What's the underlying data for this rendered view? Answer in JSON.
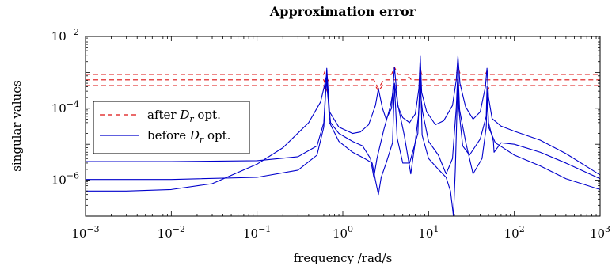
{
  "chart_data": {
    "type": "line",
    "title": "Approximation error",
    "xlabel": "frequency /rad/s",
    "ylabel": "singular values",
    "xscale": "log",
    "yscale": "log",
    "xlim": [
      0.001,
      1000
    ],
    "ylim": [
      1e-07,
      0.01
    ],
    "x_ticks": [
      {
        "value": 0.001,
        "base": "10",
        "exp": "−3"
      },
      {
        "value": 0.01,
        "base": "10",
        "exp": "−2"
      },
      {
        "value": 0.1,
        "base": "10",
        "exp": "−1"
      },
      {
        "value": 1,
        "base": "10",
        "exp": "0"
      },
      {
        "value": 10,
        "base": "10",
        "exp": "1"
      },
      {
        "value": 100,
        "base": "10",
        "exp": "2"
      },
      {
        "value": 1000,
        "base": "10",
        "exp": "3"
      }
    ],
    "y_ticks": [
      {
        "value": 1e-06,
        "base": "10",
        "exp": "−6"
      },
      {
        "value": 0.0001,
        "base": "10",
        "exp": "−4"
      },
      {
        "value": 0.01,
        "base": "10",
        "exp": "−2"
      }
    ],
    "grid": false,
    "legend_position": "center-left",
    "legend": [
      {
        "prefix": "after ",
        "symbol": "D",
        "subscript": "r",
        "suffix": " opt.",
        "color": "#dd1111",
        "dash": "dashed"
      },
      {
        "prefix": "before ",
        "symbol": "D",
        "subscript": "r",
        "suffix": " opt.",
        "color": "#0000cc",
        "dash": "solid"
      }
    ],
    "series": [
      {
        "group": "after",
        "color": "#dd1111",
        "dash": "dashed",
        "points": [
          [
            0.001,
            0.00088
          ],
          [
            0.6,
            0.00088
          ],
          [
            0.62,
            0.0011
          ],
          [
            0.66,
            0.00088
          ],
          [
            3.7,
            0.00088
          ],
          [
            4,
            0.0014
          ],
          [
            4.4,
            0.00088
          ],
          [
            7.8,
            0.00088
          ],
          [
            8,
            0.0013
          ],
          [
            8.3,
            0.00088
          ],
          [
            21,
            0.00088
          ],
          [
            22,
            0.0014
          ],
          [
            23.5,
            0.00088
          ],
          [
            46,
            0.00088
          ],
          [
            48,
            0.0011
          ],
          [
            51,
            0.00088
          ],
          [
            1000,
            0.00088
          ]
        ]
      },
      {
        "group": "after",
        "color": "#dd1111",
        "dash": "dashed",
        "points": [
          [
            0.001,
            0.00062
          ],
          [
            0.6,
            0.00062
          ],
          [
            0.63,
            0.00044
          ],
          [
            0.68,
            0.00062
          ],
          [
            2.3,
            0.00062
          ],
          [
            2.6,
            0.00036
          ],
          [
            3,
            0.00062
          ],
          [
            5.5,
            0.00062
          ],
          [
            5.9,
            0.00075
          ],
          [
            6.3,
            0.00062
          ],
          [
            1000,
            0.00062
          ]
        ]
      },
      {
        "group": "after",
        "color": "#dd1111",
        "dash": "dashed",
        "points": [
          [
            0.001,
            0.00043
          ],
          [
            0.6,
            0.00043
          ],
          [
            0.63,
            0.00028
          ],
          [
            0.68,
            0.00043
          ],
          [
            2.4,
            0.00043
          ],
          [
            2.6,
            0.0003
          ],
          [
            2.9,
            0.00043
          ],
          [
            47,
            0.00043
          ],
          [
            49,
            0.00032
          ],
          [
            52,
            0.00043
          ],
          [
            1000,
            0.00043
          ]
        ]
      },
      {
        "group": "before",
        "color": "#0000cc",
        "dash": "solid",
        "points": [
          [
            0.001,
            3.3e-06
          ],
          [
            0.01,
            3.3e-06
          ],
          [
            0.1,
            3.5e-06
          ],
          [
            0.3,
            4.5e-06
          ],
          [
            0.5,
            9e-06
          ],
          [
            0.6,
            4e-05
          ],
          [
            0.65,
            0.0013
          ],
          [
            0.7,
            8e-05
          ],
          [
            0.9,
            3e-05
          ],
          [
            1.3,
            2e-05
          ],
          [
            1.6,
            2.2e-05
          ],
          [
            2.0,
            3.5e-05
          ],
          [
            2.4,
            0.00012
          ],
          [
            2.6,
            0.00035
          ],
          [
            2.9,
            0.0001
          ],
          [
            3.2,
            5e-05
          ],
          [
            3.7,
            0.0001
          ],
          [
            4,
            0.0014
          ],
          [
            4.4,
            0.00011
          ],
          [
            5,
            5.5e-05
          ],
          [
            6,
            4e-05
          ],
          [
            7,
            7e-05
          ],
          [
            7.7,
            0.00035
          ],
          [
            8,
            0.0028
          ],
          [
            8.3,
            0.00028
          ],
          [
            9.5,
            8e-05
          ],
          [
            12,
            3.5e-05
          ],
          [
            15,
            4.5e-05
          ],
          [
            19,
            0.00012
          ],
          [
            21,
            0.0006
          ],
          [
            22,
            0.0028
          ],
          [
            23.2,
            0.0005
          ],
          [
            27,
            0.00011
          ],
          [
            33,
            5e-05
          ],
          [
            40,
            8e-05
          ],
          [
            46,
            0.0004
          ],
          [
            48,
            0.0013
          ],
          [
            50,
            0.0002
          ],
          [
            55,
            5.2e-05
          ],
          [
            70,
            3.2e-05
          ],
          [
            100,
            2.3e-05
          ],
          [
            200,
            1.3e-05
          ],
          [
            400,
            5.5e-06
          ],
          [
            1000,
            1.4e-06
          ]
        ]
      },
      {
        "group": "before",
        "color": "#0000cc",
        "dash": "solid",
        "points": [
          [
            0.001,
            1.05e-06
          ],
          [
            0.01,
            1.05e-06
          ],
          [
            0.1,
            1.2e-06
          ],
          [
            0.3,
            1.9e-06
          ],
          [
            0.5,
            5e-06
          ],
          [
            0.6,
            3e-05
          ],
          [
            0.65,
            0.0009
          ],
          [
            0.7,
            4e-05
          ],
          [
            0.9,
            1.2e-05
          ],
          [
            1.3,
            6e-06
          ],
          [
            1.8,
            4e-06
          ],
          [
            2.2,
            3e-06
          ],
          [
            2.4,
            1e-06
          ],
          [
            2.6,
            4e-07
          ],
          [
            2.8,
            1.2e-06
          ],
          [
            3.2,
            3e-06
          ],
          [
            3.8,
            1.1e-05
          ],
          [
            4,
            0.00045
          ],
          [
            4.3,
            1.5e-05
          ],
          [
            5,
            3e-06
          ],
          [
            6,
            3e-06
          ],
          [
            7.5,
            2e-05
          ],
          [
            8,
            0.0012
          ],
          [
            8.4,
            1.8e-05
          ],
          [
            10,
            4e-06
          ],
          [
            13,
            2e-06
          ],
          [
            16,
            1.2e-06
          ],
          [
            18,
            5e-07
          ],
          [
            19.5,
            1e-07
          ],
          [
            20.5,
            2e-06
          ],
          [
            21.5,
            0.00012
          ],
          [
            22,
            0.0013
          ],
          [
            22.5,
            0.0001
          ],
          [
            25,
            9e-06
          ],
          [
            30,
            5e-06
          ],
          [
            40,
            1.4e-05
          ],
          [
            47,
            6e-05
          ],
          [
            48,
            0.0004
          ],
          [
            50,
            4e-05
          ],
          [
            57,
            1.2e-05
          ],
          [
            58,
            6e-06
          ],
          [
            70,
            1.1e-05
          ],
          [
            100,
            1e-05
          ],
          [
            200,
            6e-06
          ],
          [
            400,
            3e-06
          ],
          [
            1000,
            1.1e-06
          ]
        ]
      },
      {
        "group": "before",
        "color": "#0000cc",
        "dash": "solid",
        "points": [
          [
            0.001,
            5e-07
          ],
          [
            0.003,
            5e-07
          ],
          [
            0.01,
            5.5e-07
          ],
          [
            0.03,
            8e-07
          ],
          [
            0.1,
            2.8e-06
          ],
          [
            0.2,
            8e-06
          ],
          [
            0.4,
            4e-05
          ],
          [
            0.55,
            0.00015
          ],
          [
            0.62,
            0.0005
          ],
          [
            0.64,
            0.00075
          ],
          [
            0.66,
            0.0003
          ],
          [
            0.72,
            4e-05
          ],
          [
            0.9,
            2e-05
          ],
          [
            1.3,
            1.2e-05
          ],
          [
            1.7,
            9e-06
          ],
          [
            2.1,
            4e-06
          ],
          [
            2.3,
            1.2e-06
          ],
          [
            2.5,
            4e-06
          ],
          [
            3,
            2.5e-05
          ],
          [
            3.6,
            0.00012
          ],
          [
            4,
            0.0005
          ],
          [
            4.4,
            0.00012
          ],
          [
            5.2,
            1.8e-05
          ],
          [
            6.2,
            1.5e-06
          ],
          [
            7,
            1.2e-05
          ],
          [
            7.6,
            6e-05
          ],
          [
            8,
            0.0003
          ],
          [
            8.5,
            8e-05
          ],
          [
            10,
            1.2e-05
          ],
          [
            13,
            5e-06
          ],
          [
            16,
            1.5e-06
          ],
          [
            19,
            4e-06
          ],
          [
            21,
            0.0001
          ],
          [
            22,
            0.0012
          ],
          [
            23,
            9e-05
          ],
          [
            27,
            1.2e-05
          ],
          [
            33,
            1.5e-06
          ],
          [
            42,
            4e-06
          ],
          [
            47,
            3e-05
          ],
          [
            48.5,
            0.0002
          ],
          [
            50,
            3e-05
          ],
          [
            60,
            1.1e-05
          ],
          [
            100,
            5e-06
          ],
          [
            200,
            2.5e-06
          ],
          [
            400,
            1.1e-06
          ],
          [
            1000,
            5.5e-07
          ]
        ]
      }
    ]
  }
}
